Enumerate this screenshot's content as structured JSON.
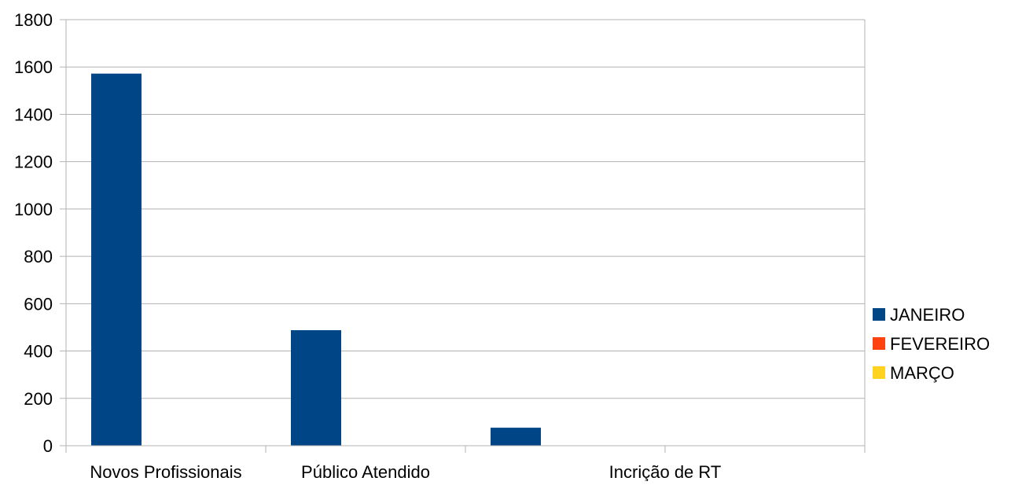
{
  "chart_data": {
    "type": "bar",
    "categories": [
      "Novos Profissionais",
      "Público Atendido",
      "Incrição de RT",
      ""
    ],
    "series": [
      {
        "name": "JANEIRO",
        "values": [
          1572,
          488,
          76,
          0
        ],
        "color": "#004586"
      },
      {
        "name": "FEVEREIRO",
        "values": [
          0,
          0,
          0,
          0
        ],
        "color": "#ff420e"
      },
      {
        "name": "MARÇO",
        "values": [
          0,
          0,
          0,
          0
        ],
        "color": "#ffd320"
      }
    ],
    "title": "",
    "xlabel": "",
    "ylabel": "",
    "ylim": [
      0,
      1800
    ],
    "yticks": [
      "0",
      "200",
      "400",
      "600",
      "800",
      "1000",
      "1200",
      "1400",
      "1600",
      "1800"
    ],
    "grid": true,
    "legend_position": "right",
    "axis_color": "#b3b3b3",
    "grid_color": "#b3b3b3"
  }
}
